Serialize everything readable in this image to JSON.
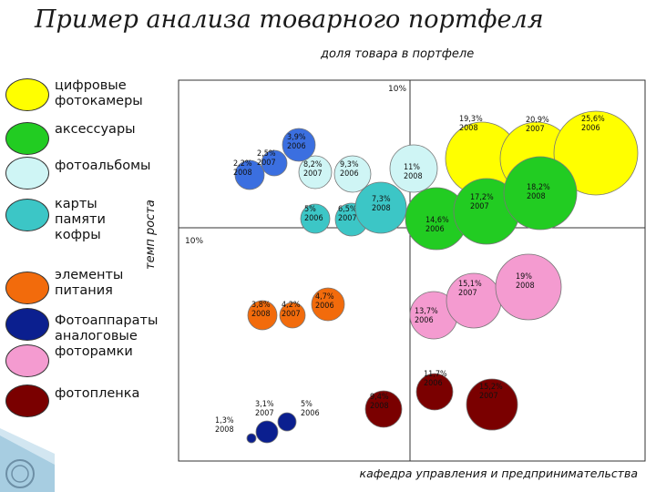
{
  "title": "Пример анализа товарного портфеля",
  "subtitle": "доля товара в портфеле",
  "footer": "кафедра управления и предпринимательства",
  "colors": {
    "digital_cameras": "#ffff00",
    "accessories": "#22cc22",
    "photo_albums": "#cff5f5",
    "memory_cards": "#3cc6c6",
    "elements": "#f26b0c",
    "analog_cameras": "#0b1f8f",
    "photo_frames": "#f49bd0",
    "film": "#7a0000"
  },
  "legend": [
    {
      "label": "цифровые\nфотокамеры",
      "color": "#ffff00"
    },
    {
      "label": "аксессуары",
      "color": "#22cc22"
    },
    {
      "label": "фотоальбомы",
      "color": "#cff5f5"
    },
    {
      "label": "карты\nпамяти\nкофры",
      "color": "#3cc6c6"
    },
    {
      "label": "элементы\nпитания",
      "color": "#f26b0c"
    },
    {
      "label": "Фотоаппараты\nаналоговые\nфоторамки",
      "color": "#0b1f8f"
    },
    {
      "label": "",
      "color": "#f49bd0"
    },
    {
      "label": "фотопленка",
      "color": "#7a0000"
    }
  ],
  "chart_data": {
    "type": "scatter",
    "title": "",
    "xlabel": "доля товара в портфеле",
    "ylabel": "темп роста",
    "tick_labels": {
      "x_split": "10%",
      "y_split": "10%"
    },
    "bubbles": [
      {
        "group": "Цифровые фотокамеры",
        "label": "19,3%",
        "year": "2008",
        "color": "#ffff00"
      },
      {
        "group": "Цифровые фотокамеры",
        "label": "20,9%",
        "year": "2007",
        "color": "#ffff00"
      },
      {
        "group": "Цифровые фотокамеры",
        "label": "25,6%",
        "year": "2006",
        "color": "#ffff00"
      },
      {
        "group": "аксессуары",
        "label": "14,6%",
        "year": "2006",
        "color": "#22cc22"
      },
      {
        "group": "аксессуары",
        "label": "17,2%",
        "year": "2007",
        "color": "#22cc22"
      },
      {
        "group": "аксессуары",
        "label": "18,2%",
        "year": "2008",
        "color": "#22cc22"
      },
      {
        "group": "фотоальбомы",
        "label": "8,2%",
        "year": "2007",
        "color": "#cff5f5"
      },
      {
        "group": "фотоальбомы",
        "label": "9,3%",
        "year": "2006",
        "color": "#cff5f5"
      },
      {
        "group": "фотоальбомы",
        "label": "11%",
        "year": "2008",
        "color": "#cff5f5"
      },
      {
        "group": "карты памяти",
        "label": "5%",
        "year": "2006",
        "color": "#3cc6c6"
      },
      {
        "group": "карты памяти",
        "label": "6,5%",
        "year": "2007",
        "color": "#3cc6c6"
      },
      {
        "group": "карты памяти",
        "label": "7,3%",
        "year": "2008",
        "color": "#3cc6c6"
      },
      {
        "group": "кофры",
        "label": "2,2%",
        "year": "2008",
        "color": "#3b6fe0"
      },
      {
        "group": "кофры",
        "label": "2,5%",
        "year": "2007",
        "color": "#3b6fe0"
      },
      {
        "group": "кофры",
        "label": "3,9%",
        "year": "2006",
        "color": "#3b6fe0"
      },
      {
        "group": "элементы питания",
        "label": "3,8%",
        "year": "2008",
        "color": "#f26b0c"
      },
      {
        "group": "элементы питания",
        "label": "4,2%",
        "year": "2007",
        "color": "#f26b0c"
      },
      {
        "group": "элементы питания",
        "label": "4,7%",
        "year": "2006",
        "color": "#f26b0c"
      },
      {
        "group": "Фотоаппараты аналоговые",
        "label": "1,3%",
        "year": "2008",
        "color": "#0b1f8f"
      },
      {
        "group": "Фотоаппараты аналоговые",
        "label": "3,1%",
        "year": "2007",
        "color": "#0b1f8f"
      },
      {
        "group": "Фотоаппараты аналоговые",
        "label": "5%",
        "year": "2006",
        "color": "#0b1f8f"
      },
      {
        "group": "фоторамки",
        "label": "13,7%",
        "year": "2006",
        "color": "#f49bd0"
      },
      {
        "group": "фоторамки",
        "label": "15,1%",
        "year": "2007",
        "color": "#f49bd0"
      },
      {
        "group": "фоторамки",
        "label": "19%",
        "year": "2008",
        "color": "#f49bd0"
      },
      {
        "group": "фотопленка",
        "label": "9,4%",
        "year": "2008",
        "color": "#7a0000"
      },
      {
        "group": "фотопленка",
        "label": "11,7%",
        "year": "2006",
        "color": "#7a0000"
      },
      {
        "group": "фотопленка",
        "label": "15,2%",
        "year": "2007",
        "color": "#7a0000"
      }
    ]
  }
}
